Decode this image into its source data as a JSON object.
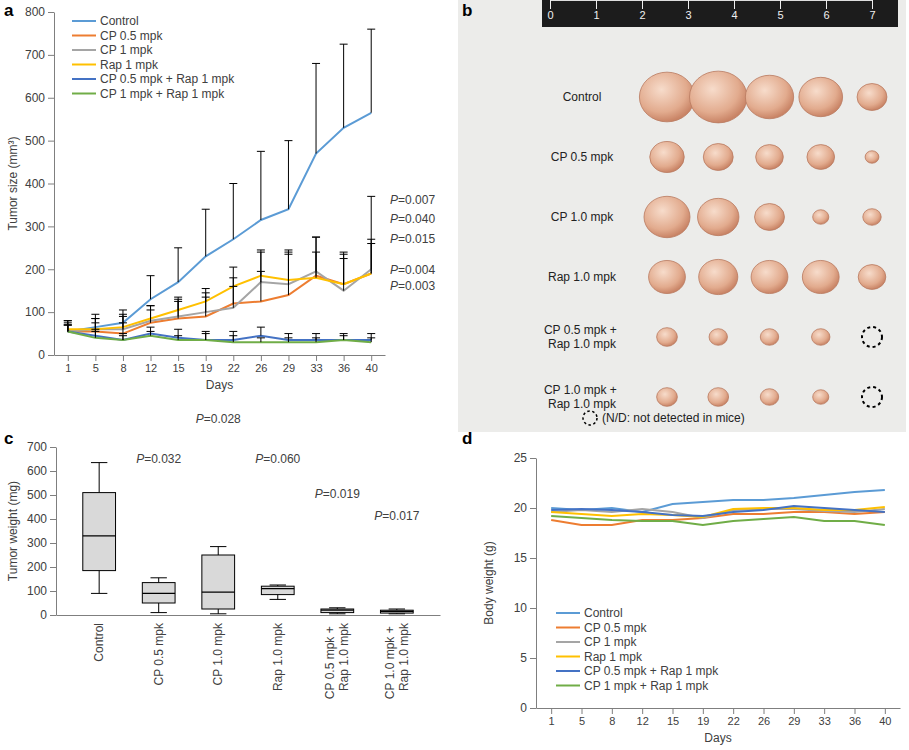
{
  "chart_data": [
    {
      "title": "a",
      "type": "line",
      "categories": [
        "1",
        "5",
        "8",
        "12",
        "15",
        "19",
        "22",
        "26",
        "29",
        "33",
        "36",
        "40"
      ],
      "x_label": "Days",
      "y_label": "Tumor size (mm³)",
      "ylim": [
        0,
        800
      ],
      "yticks": [
        0,
        100,
        200,
        300,
        400,
        500,
        600,
        700,
        800
      ],
      "legend": "upper left",
      "series": [
        {
          "name": "Control",
          "color": "#5b9bd5",
          "values": [
            55,
            65,
            75,
            130,
            170,
            230,
            270,
            315,
            340,
            470,
            530,
            565
          ],
          "errors": [
            25,
            30,
            30,
            55,
            80,
            110,
            130,
            160,
            160,
            210,
            195,
            195
          ]
        },
        {
          "name": "CP 0.5 mpk",
          "color": "#ed7d31",
          "values": [
            55,
            55,
            50,
            75,
            85,
            90,
            120,
            125,
            140,
            185,
            165,
            190
          ],
          "errors": [
            15,
            20,
            25,
            30,
            40,
            45,
            60,
            70,
            100,
            90,
            70,
            80
          ]
        },
        {
          "name": "CP 1 mpk",
          "color": "#a5a5a5",
          "values": [
            55,
            60,
            60,
            80,
            90,
            100,
            110,
            170,
            165,
            195,
            150,
            200
          ],
          "errors": [
            20,
            25,
            30,
            35,
            40,
            45,
            50,
            70,
            80,
            80,
            90,
            170
          ]
        },
        {
          "name": "Rap 1 mpk",
          "color": "#ffc000",
          "values": [
            60,
            60,
            65,
            85,
            105,
            125,
            160,
            185,
            175,
            180,
            165,
            190
          ],
          "errors": [
            20,
            25,
            30,
            30,
            30,
            30,
            45,
            60,
            60,
            60,
            60,
            70
          ]
        },
        {
          "name": "CP 0.5 mpk + Rap 1 mpk",
          "color": "#4472c4",
          "values": [
            55,
            45,
            35,
            50,
            40,
            35,
            35,
            45,
            35,
            35,
            35,
            35
          ],
          "errors": [
            15,
            15,
            15,
            15,
            20,
            20,
            20,
            20,
            15,
            15,
            15,
            15
          ]
        },
        {
          "name": "CP 1 mpk + Rap 1 mpk",
          "color": "#70ad47",
          "values": [
            55,
            40,
            35,
            45,
            35,
            35,
            30,
            30,
            30,
            30,
            35,
            30
          ],
          "errors": [
            15,
            15,
            10,
            10,
            10,
            15,
            15,
            10,
            10,
            10,
            10,
            10
          ]
        }
      ],
      "annotations": [
        {
          "text": "P=0.007",
          "y": 362
        },
        {
          "text": "P=0.040",
          "y": 318
        },
        {
          "text": "P=0.015",
          "y": 271
        },
        {
          "text": "P=0.004",
          "y": 199
        },
        {
          "text": "P=0.003",
          "y": 160
        }
      ]
    },
    {
      "title": "b",
      "type": "photo",
      "ruler_ticks": [
        0,
        1,
        2,
        3,
        4,
        5,
        6,
        7
      ],
      "rows": [
        {
          "label": "Control",
          "sizes": [
            1.2,
            1.25,
            1.05,
            0.95,
            0.65
          ]
        },
        {
          "label": "CP 0.5 mpk",
          "sizes": [
            0.75,
            0.65,
            0.6,
            0.6,
            0.3
          ]
        },
        {
          "label": "CP 1.0 mpk",
          "sizes": [
            1.0,
            0.9,
            0.65,
            0.35,
            0.4
          ]
        },
        {
          "label": "Rap 1.0 mpk",
          "sizes": [
            0.8,
            0.85,
            0.8,
            0.8,
            0.6
          ]
        },
        {
          "label": "CP 0.5 mpk + Rap 1.0 mpk",
          "sizes": [
            0.45,
            0.4,
            0.4,
            0.4,
            null
          ]
        },
        {
          "label": "CP 1.0 mpk + Rap 1.0 mpk",
          "sizes": [
            0.45,
            0.45,
            0.4,
            0.35,
            null
          ]
        }
      ],
      "note": "(N/D: not detected in mice)"
    },
    {
      "title": "c",
      "type": "box",
      "categories": [
        "Control",
        "CP 0.5 mpk",
        "CP 1.0 mpk",
        "Rap 1.0 mpk",
        "CP 0.5 mpk + Rap 1.0 mpk",
        "CP 1.0 mpk + Rap 1.0 mpk"
      ],
      "y_label": "Tumor weight (mg)",
      "ylim": [
        0,
        700
      ],
      "yticks": [
        0,
        100,
        200,
        300,
        400,
        500,
        600,
        700
      ],
      "color": "#d9d9d9",
      "boxes": [
        {
          "min": 90,
          "q1": 185,
          "median": 330,
          "q3": 510,
          "max": 635
        },
        {
          "min": 10,
          "q1": 50,
          "median": 90,
          "q3": 135,
          "max": 155
        },
        {
          "min": 5,
          "q1": 25,
          "median": 95,
          "q3": 250,
          "max": 285
        },
        {
          "min": 65,
          "q1": 85,
          "median": 110,
          "q3": 120,
          "max": 125
        },
        {
          "min": 5,
          "q1": 10,
          "median": 20,
          "q3": 25,
          "max": 30
        },
        {
          "min": 5,
          "q1": 8,
          "median": 15,
          "q3": 20,
          "max": 25
        }
      ],
      "annotations": [
        {
          "text": "P=0.032",
          "category": "CP 0.5 mpk",
          "y": 633
        },
        {
          "text": "P=0.028",
          "category": "CP 1.0 mpk",
          "y": 800
        },
        {
          "text": "P=0.060",
          "category": "Rap 1.0 mpk",
          "y": 633
        },
        {
          "text": "P=0.019",
          "category": "CP 0.5 mpk + Rap 1.0 mpk",
          "y": 487
        },
        {
          "text": "P=0.017",
          "category": "CP 1.0 mpk + Rap 1.0 mpk",
          "y": 396
        }
      ]
    },
    {
      "title": "d",
      "type": "line",
      "categories": [
        "1",
        "5",
        "8",
        "12",
        "15",
        "19",
        "22",
        "26",
        "29",
        "33",
        "36",
        "40"
      ],
      "x_label": "Days",
      "y_label": "Body weight (g)",
      "ylim": [
        0,
        25
      ],
      "yticks": [
        0,
        5,
        10,
        15,
        20,
        25
      ],
      "legend": "lower left",
      "series": [
        {
          "name": "Control",
          "color": "#5b9bd5",
          "values": [
            20.0,
            19.8,
            20.0,
            19.6,
            20.4,
            20.6,
            20.8,
            20.8,
            21.0,
            21.3,
            21.6,
            21.8
          ]
        },
        {
          "name": "CP 0.5 mpk",
          "color": "#ed7d31",
          "values": [
            18.8,
            18.3,
            18.3,
            18.8,
            18.8,
            19.0,
            19.4,
            19.4,
            19.6,
            19.6,
            19.4,
            19.6
          ]
        },
        {
          "name": "CP 1 mpk",
          "color": "#a5a5a5",
          "values": [
            19.6,
            19.8,
            19.6,
            19.9,
            19.6,
            19.0,
            19.8,
            19.9,
            19.9,
            19.7,
            19.6,
            19.9
          ]
        },
        {
          "name": "Rap 1 mpk",
          "color": "#ffc000",
          "values": [
            19.6,
            19.4,
            19.2,
            19.4,
            19.3,
            19.1,
            19.9,
            20.0,
            20.0,
            19.8,
            19.8,
            20.1
          ]
        },
        {
          "name": "CP 0.5 mpk + Rap 1 mpk",
          "color": "#4472c4",
          "values": [
            19.8,
            19.9,
            19.8,
            19.6,
            19.3,
            19.2,
            19.6,
            19.8,
            20.2,
            20.0,
            19.8,
            19.6
          ]
        },
        {
          "name": "CP 1 mpk + Rap 1 mpk",
          "color": "#70ad47",
          "values": [
            19.2,
            19.0,
            18.8,
            18.7,
            18.7,
            18.3,
            18.7,
            18.9,
            19.1,
            18.7,
            18.7,
            18.3
          ]
        }
      ]
    }
  ]
}
